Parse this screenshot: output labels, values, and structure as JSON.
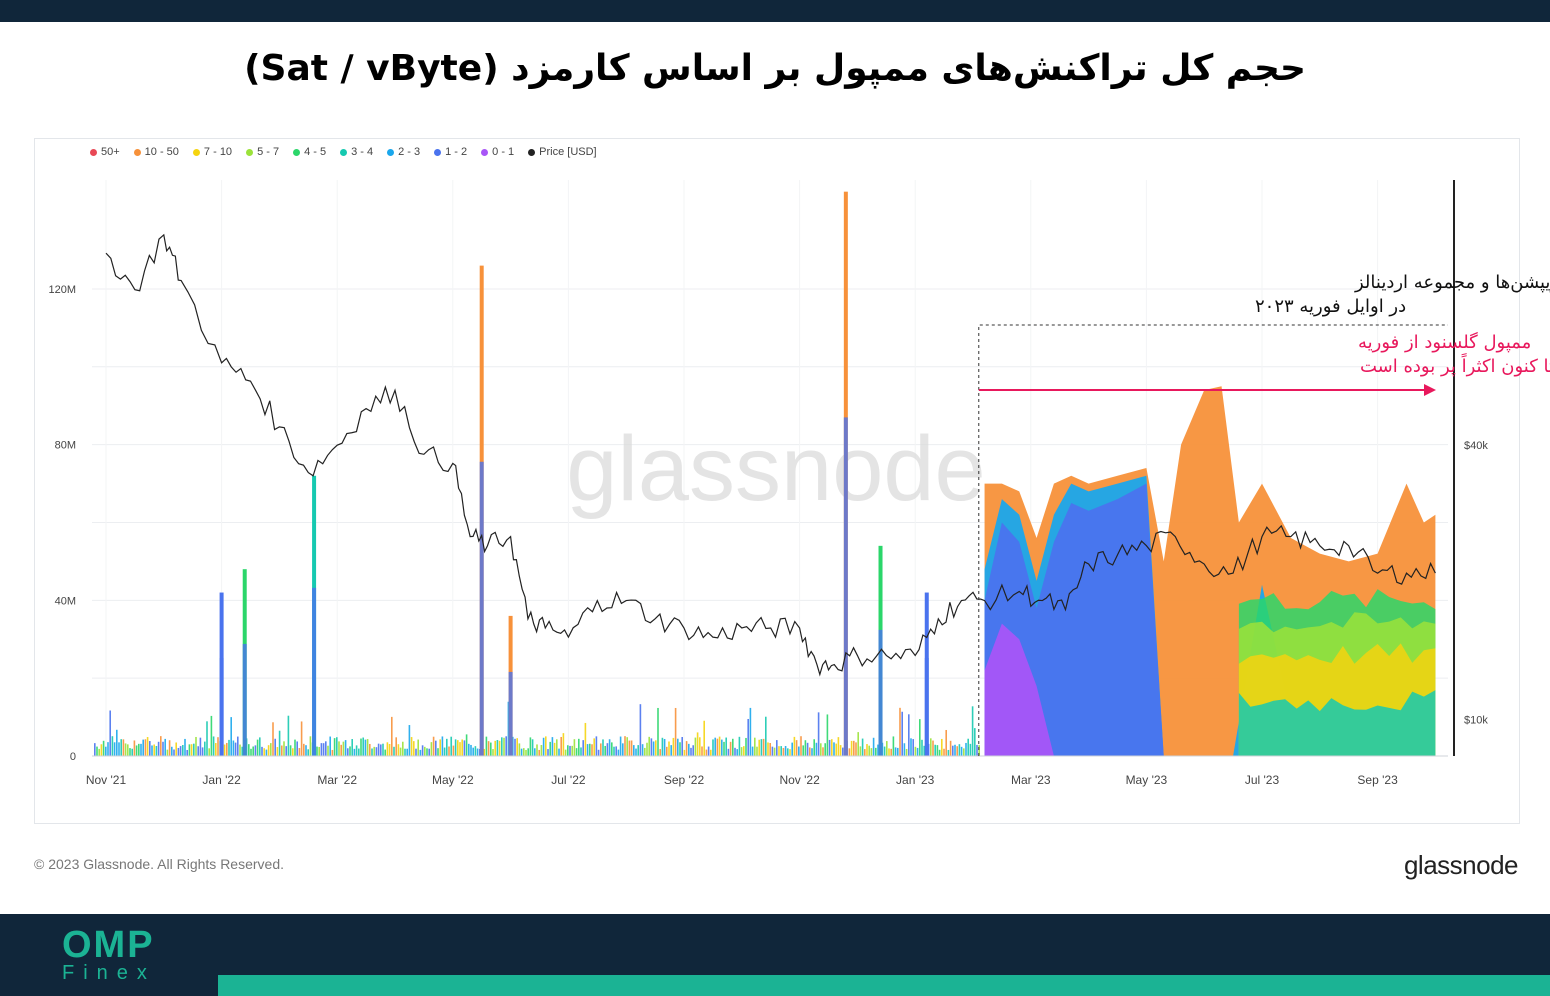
{
  "page": {
    "title": "حجم کل تراکنش‌های ممپول بر اساس کارمزد (Sat / vByte)",
    "copyright": "© 2023 Glassnode. All Rights Reserved.",
    "brand": "glassnode",
    "watermark": "glassnode",
    "footer_logo_main": "OMP",
    "footer_logo_sub": "Finex"
  },
  "annotations": {
    "launch_line1": "راه‌اندازی اینسکریپشن‌ها و مجموعه اردینالز",
    "launch_line2": "در اوایل فوریه ۲۰۲۳",
    "full_line1": "ممپول گلسنود از فوریه",
    "full_line2": "تا کنون اکثراً پر بوده است",
    "accent_color": "#e8185c"
  },
  "chart_data": {
    "type": "area",
    "legend_placement": "top-left",
    "legend": [
      {
        "label": "50+",
        "color": "#e84855"
      },
      {
        "label": "10 - 50",
        "color": "#f7913a"
      },
      {
        "label": "7 - 10",
        "color": "#f5d40f"
      },
      {
        "label": "5 - 7",
        "color": "#9be23a"
      },
      {
        "label": "4 - 5",
        "color": "#2bd66a"
      },
      {
        "label": "3 - 4",
        "color": "#16c9b0"
      },
      {
        "label": "2 - 3",
        "color": "#1aa7ec"
      },
      {
        "label": "1 - 2",
        "color": "#4a73ee"
      },
      {
        "label": "0 - 1",
        "color": "#a855f7"
      },
      {
        "label": "Price [USD]",
        "color": "#222222"
      }
    ],
    "x_ticks": [
      "Nov '21",
      "Jan '22",
      "Mar '22",
      "May '22",
      "Jul '22",
      "Sep '22",
      "Nov '22",
      "Jan '23",
      "Mar '23",
      "May '23",
      "Jul '23",
      "Sep '23"
    ],
    "x_tick_months": [
      0,
      2,
      4,
      6,
      8,
      10,
      12,
      14,
      16,
      18,
      20,
      22
    ],
    "x_start_date": "2021-11-01",
    "x_end_date": "2023-09-28",
    "y_left_ticks": [
      "0",
      "40M",
      "80M",
      "120M"
    ],
    "y_left_tick_values": [
      0,
      40,
      80,
      120
    ],
    "y_left_unit": "M",
    "y_left_range": [
      0,
      148
    ],
    "y_right_ticks": [
      "$10k",
      "$40k"
    ],
    "y_right_tick_values": [
      10,
      40
    ],
    "y_right_unit": "k USD",
    "y_right_range": [
      6,
      69
    ],
    "grid": true,
    "annotation_date": "2023-02-01",
    "price_series": {
      "name": "Price [USD]",
      "x_month": [
        0.0,
        0.5,
        1.0,
        1.3,
        2.0,
        2.5,
        3.0,
        3.5,
        4.0,
        4.5,
        5.0,
        5.5,
        6.0,
        6.3,
        6.6,
        7.0,
        7.3,
        7.6,
        8.0,
        8.5,
        9.0,
        9.5,
        10.0,
        10.5,
        11.0,
        11.5,
        12.0,
        12.3,
        12.6,
        13.0,
        13.5,
        14.0,
        14.4,
        14.8,
        15.2,
        15.8,
        16.2,
        16.6,
        17.0,
        17.5,
        18.0,
        18.5,
        19.0,
        19.5,
        20.0,
        20.5,
        21.0,
        21.5,
        22.0,
        22.5,
        23.0
      ],
      "values_k": [
        61,
        57,
        63,
        58,
        49,
        47,
        42,
        37,
        40,
        44,
        46,
        39,
        38,
        30,
        29,
        30,
        21,
        20,
        19,
        23,
        23,
        21,
        20,
        19,
        20,
        20,
        20,
        16,
        16,
        17,
        17,
        17,
        21,
        23,
        23,
        24,
        23,
        22,
        27,
        28,
        29,
        30,
        27,
        26,
        30,
        30,
        29,
        29,
        26,
        26,
        26
      ]
    },
    "volume_series": [
      {
        "name": "0 - 1",
        "x_month": [
          15.2,
          15.5,
          15.8,
          16.1,
          16.4,
          16.7,
          17.0,
          17.5,
          18.0,
          23.0
        ],
        "values_m": [
          22,
          34,
          30,
          18,
          0,
          0,
          0,
          0,
          0,
          0
        ]
      },
      {
        "name": "1 - 2",
        "x_month": [
          15.2,
          15.5,
          15.8,
          16.1,
          16.4,
          16.7,
          17.0,
          17.5,
          18.0,
          18.3,
          23.0
        ],
        "values_m": [
          40,
          60,
          55,
          38,
          55,
          65,
          63,
          66,
          70,
          0,
          0
        ]
      },
      {
        "name": "2 - 3",
        "x_month": [
          15.2,
          15.5,
          15.8,
          16.1,
          16.4,
          16.7,
          17.0,
          17.5,
          18.0,
          18.3,
          19.5,
          20.0,
          20.5,
          23.0
        ],
        "values_m": [
          48,
          66,
          62,
          45,
          62,
          70,
          68,
          70,
          72,
          0,
          0,
          44,
          10,
          0
        ]
      },
      {
        "name": "10 - 50",
        "x_month": [
          15.2,
          15.5,
          15.8,
          16.1,
          16.4,
          16.7,
          17.0,
          17.5,
          18.0,
          18.3,
          18.6,
          19.0,
          19.3,
          19.6,
          20.0,
          20.5,
          21.0,
          21.5,
          22.0,
          22.5,
          22.8,
          23.0
        ],
        "values_m": [
          70,
          70,
          68,
          56,
          70,
          72,
          70,
          72,
          74,
          50,
          80,
          94,
          95,
          60,
          70,
          56,
          52,
          50,
          52,
          70,
          60,
          62
        ]
      }
    ],
    "spikes": [
      {
        "x_month": 6.5,
        "value_m": 126,
        "band": "10 - 50"
      },
      {
        "x_month": 12.8,
        "value_m": 145,
        "band": "10 - 50"
      },
      {
        "x_month": 7.0,
        "value_m": 36,
        "band": "10 - 50"
      },
      {
        "x_month": 3.6,
        "value_m": 72,
        "band": "3 - 4"
      },
      {
        "x_month": 2.4,
        "value_m": 48,
        "band": "4 - 5"
      },
      {
        "x_month": 2.0,
        "value_m": 42,
        "band": "1 - 2"
      },
      {
        "x_month": 13.4,
        "value_m": 54,
        "band": "4 - 5"
      },
      {
        "x_month": 14.2,
        "value_m": 42,
        "band": "1 - 2"
      }
    ]
  }
}
